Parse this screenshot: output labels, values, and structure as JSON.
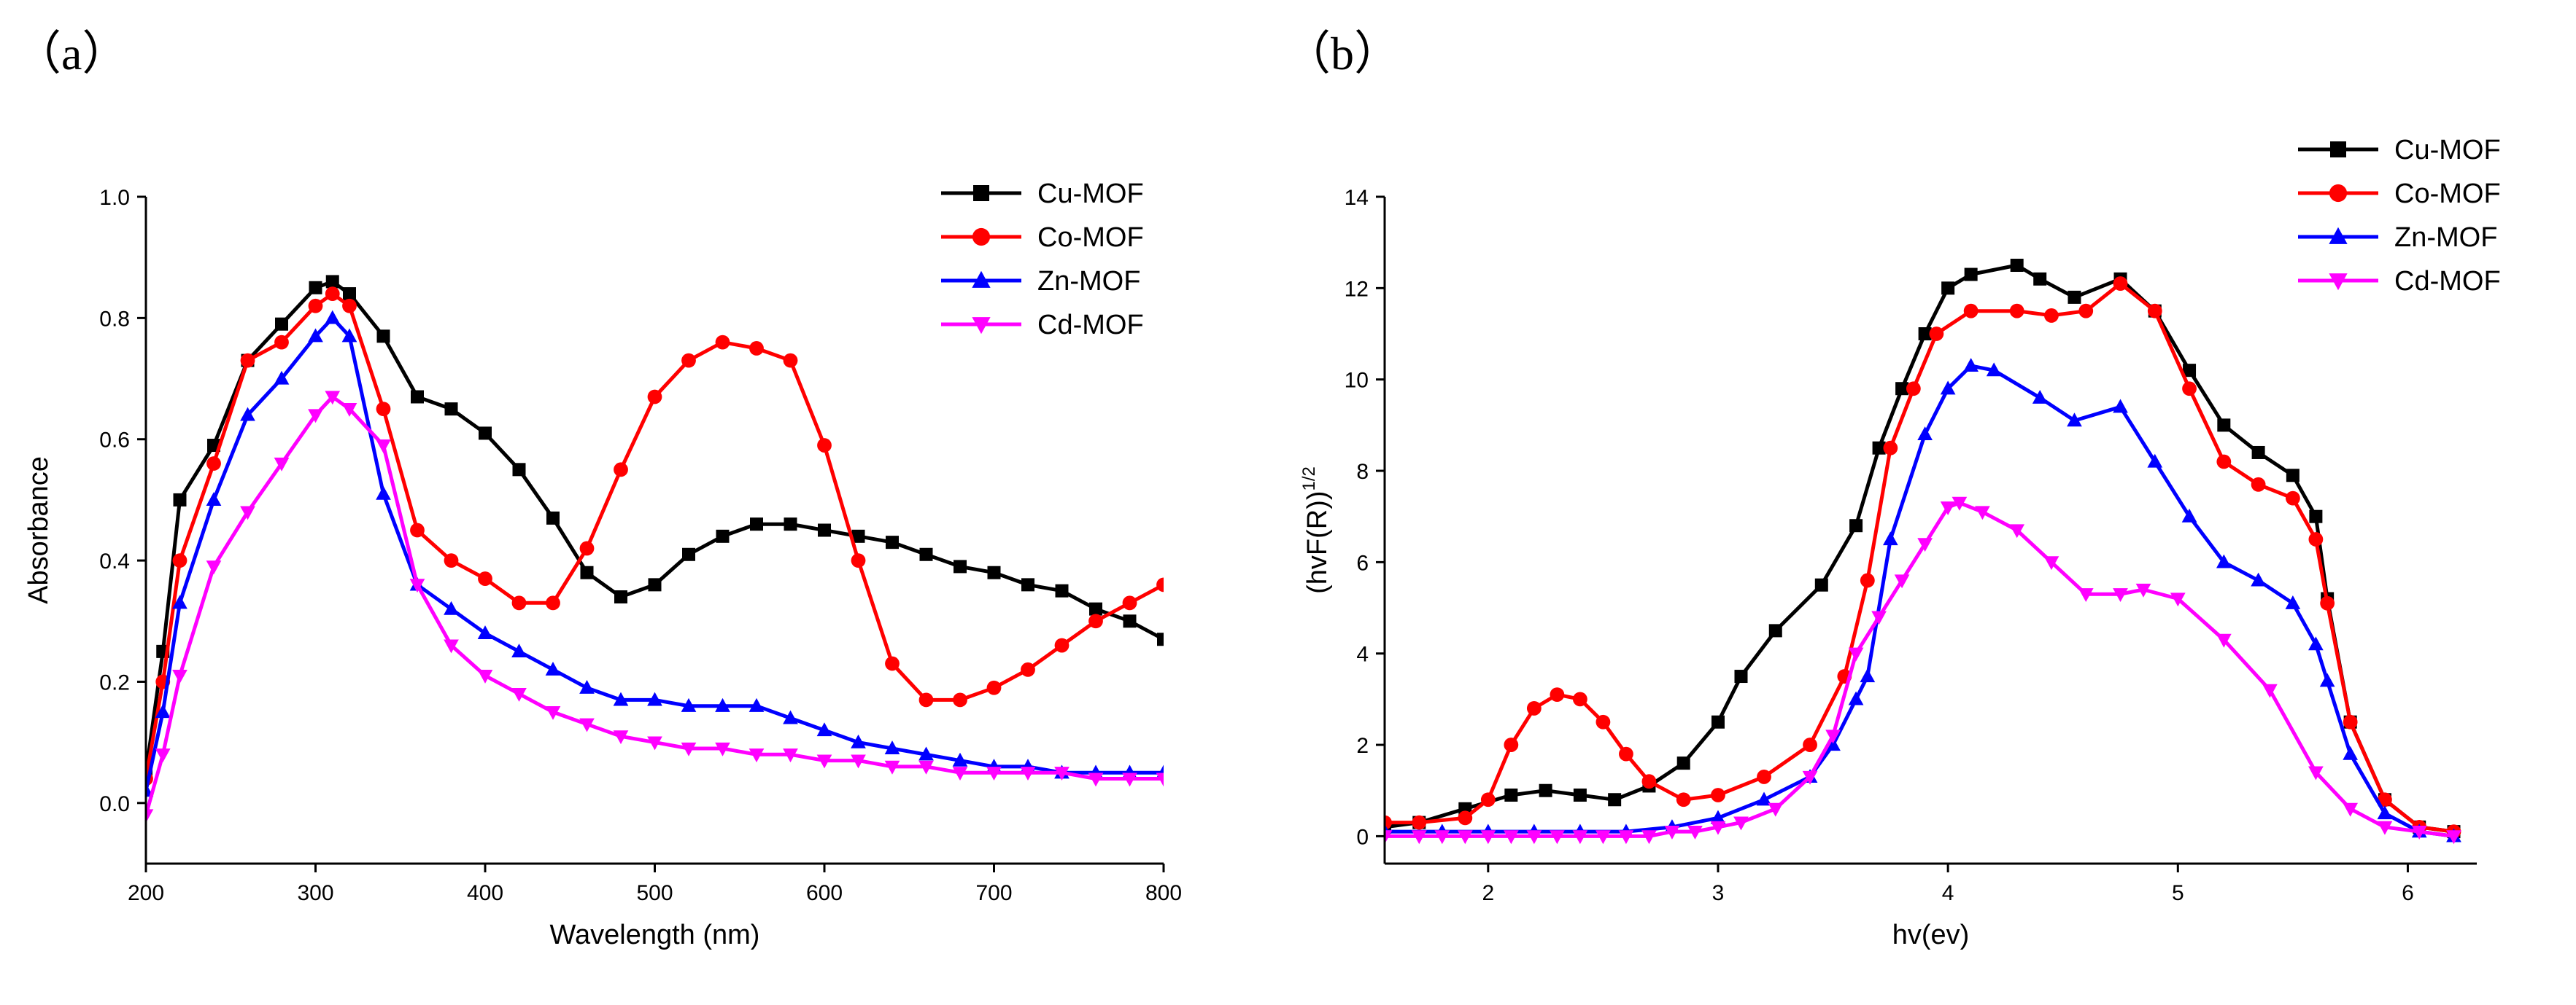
{
  "chart_data": [
    {
      "panel_label": "（a）",
      "type": "line",
      "xlabel": "Wavelength (nm)",
      "ylabel": "Absorbance",
      "xlim": [
        200,
        800
      ],
      "ylim": [
        -0.1,
        1.0
      ],
      "xticks": [
        200,
        300,
        400,
        500,
        600,
        700,
        800
      ],
      "yticks": [
        0.0,
        0.2,
        0.4,
        0.6,
        0.8,
        1.0
      ],
      "xtick_labels": [
        "200",
        "300",
        "400",
        "500",
        "600",
        "700",
        "800"
      ],
      "ytick_labels": [
        "0.0",
        "0.2",
        "0.4",
        "0.6",
        "0.8",
        "1.0"
      ],
      "legend_position": "top-right",
      "series": [
        {
          "name": "Cu-MOF",
          "color": "#000000",
          "marker": "square",
          "x": [
            200,
            210,
            220,
            240,
            260,
            280,
            300,
            310,
            320,
            340,
            360,
            380,
            400,
            420,
            440,
            460,
            480,
            500,
            520,
            540,
            560,
            580,
            600,
            620,
            640,
            660,
            680,
            700,
            720,
            740,
            760,
            780,
            800
          ],
          "y": [
            0.05,
            0.25,
            0.5,
            0.59,
            0.73,
            0.79,
            0.85,
            0.86,
            0.84,
            0.77,
            0.67,
            0.65,
            0.61,
            0.55,
            0.47,
            0.38,
            0.34,
            0.36,
            0.41,
            0.44,
            0.46,
            0.46,
            0.45,
            0.44,
            0.43,
            0.41,
            0.39,
            0.38,
            0.36,
            0.35,
            0.32,
            0.3,
            0.27
          ]
        },
        {
          "name": "Co-MOF",
          "color": "#ff0000",
          "marker": "circle",
          "x": [
            200,
            210,
            220,
            240,
            260,
            280,
            300,
            310,
            320,
            340,
            360,
            380,
            400,
            420,
            440,
            460,
            480,
            500,
            520,
            540,
            560,
            580,
            600,
            620,
            640,
            660,
            680,
            700,
            720,
            740,
            760,
            780,
            800
          ],
          "y": [
            0.04,
            0.2,
            0.4,
            0.56,
            0.73,
            0.76,
            0.82,
            0.84,
            0.82,
            0.65,
            0.45,
            0.4,
            0.37,
            0.33,
            0.33,
            0.42,
            0.55,
            0.67,
            0.73,
            0.76,
            0.75,
            0.73,
            0.59,
            0.4,
            0.23,
            0.17,
            0.17,
            0.19,
            0.22,
            0.26,
            0.3,
            0.33,
            0.36
          ]
        },
        {
          "name": "Zn-MOF",
          "color": "#0000ff",
          "marker": "triangle-up",
          "x": [
            200,
            210,
            220,
            240,
            260,
            280,
            300,
            310,
            320,
            340,
            360,
            380,
            400,
            420,
            440,
            460,
            480,
            500,
            520,
            540,
            560,
            580,
            600,
            620,
            640,
            660,
            680,
            700,
            720,
            740,
            760,
            780,
            800
          ],
          "y": [
            0.02,
            0.15,
            0.33,
            0.5,
            0.64,
            0.7,
            0.77,
            0.8,
            0.77,
            0.51,
            0.36,
            0.32,
            0.28,
            0.25,
            0.22,
            0.19,
            0.17,
            0.17,
            0.16,
            0.16,
            0.16,
            0.14,
            0.12,
            0.1,
            0.09,
            0.08,
            0.07,
            0.06,
            0.06,
            0.05,
            0.05,
            0.05,
            0.05
          ]
        },
        {
          "name": "Cd-MOF",
          "color": "#ff00ff",
          "marker": "triangle-down",
          "x": [
            200,
            210,
            220,
            240,
            260,
            280,
            300,
            310,
            320,
            340,
            360,
            380,
            400,
            420,
            440,
            460,
            480,
            500,
            520,
            540,
            560,
            580,
            600,
            620,
            640,
            660,
            680,
            700,
            720,
            740,
            760,
            780,
            800
          ],
          "y": [
            -0.02,
            0.08,
            0.21,
            0.39,
            0.48,
            0.56,
            0.64,
            0.67,
            0.65,
            0.59,
            0.36,
            0.26,
            0.21,
            0.18,
            0.15,
            0.13,
            0.11,
            0.1,
            0.09,
            0.09,
            0.08,
            0.08,
            0.07,
            0.07,
            0.06,
            0.06,
            0.05,
            0.05,
            0.05,
            0.05,
            0.04,
            0.04,
            0.04
          ]
        }
      ]
    },
    {
      "panel_label": "（b）",
      "type": "line",
      "xlabel": "hv(ev)",
      "ylabel": "(hvF(R))",
      "ylabel_superscript": "1/2",
      "xlim": [
        1.55,
        6.3
      ],
      "ylim": [
        -0.6,
        14
      ],
      "xticks": [
        2,
        3,
        4,
        5,
        6
      ],
      "yticks": [
        0,
        2,
        4,
        6,
        8,
        10,
        12,
        14
      ],
      "xtick_labels": [
        "2",
        "3",
        "4",
        "5",
        "6"
      ],
      "ytick_labels": [
        "0",
        "2",
        "4",
        "6",
        "8",
        "10",
        "12",
        "14"
      ],
      "legend_position": "top-right",
      "series": [
        {
          "name": "Cu-MOF",
          "color": "#000000",
          "marker": "square",
          "x": [
            1.55,
            1.7,
            1.9,
            2.1,
            2.25,
            2.4,
            2.55,
            2.7,
            2.85,
            3.0,
            3.1,
            3.25,
            3.45,
            3.6,
            3.7,
            3.8,
            3.9,
            4.0,
            4.1,
            4.3,
            4.4,
            4.55,
            4.75,
            4.9,
            5.05,
            5.2,
            5.35,
            5.5,
            5.6,
            5.65,
            5.75,
            5.9,
            6.05,
            6.2
          ],
          "y": [
            0.2,
            0.3,
            0.6,
            0.9,
            1.0,
            0.9,
            0.8,
            1.1,
            1.6,
            2.5,
            3.5,
            4.5,
            5.5,
            6.8,
            8.5,
            9.8,
            11.0,
            12.0,
            12.3,
            12.5,
            12.2,
            11.8,
            12.2,
            11.5,
            10.2,
            9.0,
            8.4,
            7.9,
            7.0,
            5.2,
            2.5,
            0.8,
            0.2,
            0.1
          ]
        },
        {
          "name": "Co-MOF",
          "color": "#ff0000",
          "marker": "circle",
          "x": [
            1.55,
            1.7,
            1.9,
            2.0,
            2.1,
            2.2,
            2.3,
            2.4,
            2.5,
            2.6,
            2.7,
            2.85,
            3.0,
            3.2,
            3.4,
            3.55,
            3.65,
            3.75,
            3.85,
            3.95,
            4.1,
            4.3,
            4.45,
            4.6,
            4.75,
            4.9,
            5.05,
            5.2,
            5.35,
            5.5,
            5.6,
            5.65,
            5.75,
            5.9,
            6.05,
            6.2
          ],
          "y": [
            0.3,
            0.3,
            0.4,
            0.8,
            2.0,
            2.8,
            3.1,
            3.0,
            2.5,
            1.8,
            1.2,
            0.8,
            0.9,
            1.3,
            2.0,
            3.5,
            5.6,
            8.5,
            9.8,
            11.0,
            11.5,
            11.5,
            11.4,
            11.5,
            12.1,
            11.5,
            9.8,
            8.2,
            7.7,
            7.4,
            6.5,
            5.1,
            2.5,
            0.8,
            0.2,
            0.1
          ]
        },
        {
          "name": "Zn-MOF",
          "color": "#0000ff",
          "marker": "triangle-up",
          "x": [
            1.55,
            1.8,
            2.0,
            2.2,
            2.4,
            2.6,
            2.8,
            3.0,
            3.2,
            3.4,
            3.5,
            3.6,
            3.65,
            3.75,
            3.9,
            4.0,
            4.1,
            4.2,
            4.4,
            4.55,
            4.75,
            4.9,
            5.05,
            5.2,
            5.35,
            5.5,
            5.6,
            5.65,
            5.75,
            5.9,
            6.05,
            6.2
          ],
          "y": [
            0.1,
            0.1,
            0.1,
            0.1,
            0.1,
            0.1,
            0.2,
            0.4,
            0.8,
            1.3,
            2.0,
            3.0,
            3.5,
            6.5,
            8.8,
            9.8,
            10.3,
            10.2,
            9.6,
            9.1,
            9.4,
            8.2,
            7.0,
            6.0,
            5.6,
            5.1,
            4.2,
            3.4,
            1.8,
            0.5,
            0.1,
            0.0
          ]
        },
        {
          "name": "Cd-MOF",
          "color": "#ff00ff",
          "marker": "triangle-down",
          "x": [
            1.55,
            1.7,
            1.8,
            1.9,
            2.0,
            2.1,
            2.2,
            2.3,
            2.4,
            2.5,
            2.6,
            2.7,
            2.8,
            2.9,
            3.0,
            3.1,
            3.25,
            3.4,
            3.5,
            3.6,
            3.7,
            3.8,
            3.9,
            4.0,
            4.05,
            4.15,
            4.3,
            4.45,
            4.6,
            4.75,
            4.85,
            5.0,
            5.2,
            5.4,
            5.6,
            5.75,
            5.9,
            6.05,
            6.2
          ],
          "y": [
            0.0,
            0.0,
            0.0,
            0.0,
            0.0,
            0.0,
            0.0,
            0.0,
            0.0,
            0.0,
            0.0,
            0.0,
            0.1,
            0.1,
            0.2,
            0.3,
            0.6,
            1.3,
            2.2,
            4.0,
            4.8,
            5.6,
            6.4,
            7.2,
            7.3,
            7.1,
            6.7,
            6.0,
            5.3,
            5.3,
            5.4,
            5.2,
            4.3,
            3.2,
            1.4,
            0.6,
            0.2,
            0.1,
            0.0
          ]
        }
      ]
    }
  ]
}
